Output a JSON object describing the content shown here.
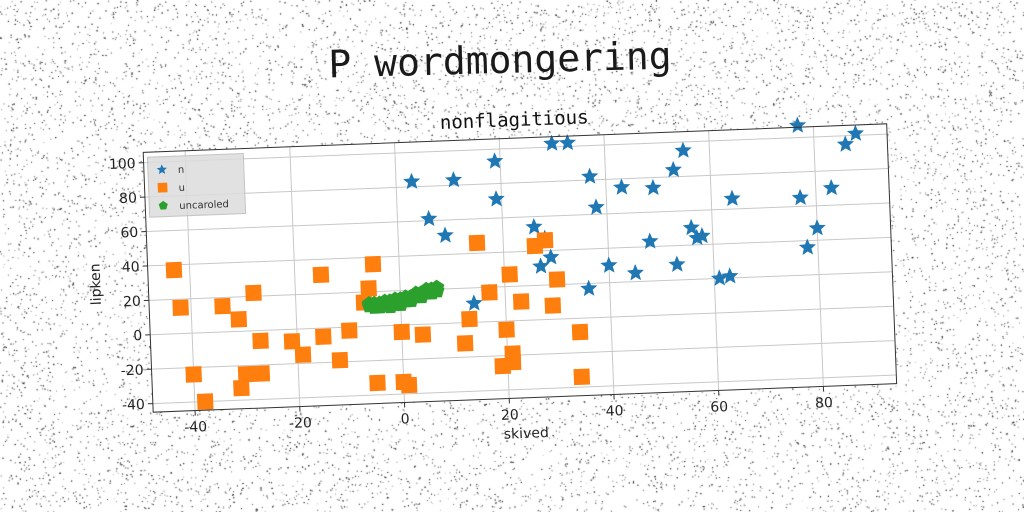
{
  "figure": {
    "super_title": "P wordmongering"
  },
  "chart_data": {
    "type": "scatter",
    "title": "nonflagitious",
    "xlabel": "skived",
    "ylabel": "lipken",
    "xlim": [
      -48,
      94
    ],
    "ylim": [
      -45,
      106
    ],
    "xticks": [
      -40,
      -20,
      0,
      20,
      40,
      60,
      80
    ],
    "yticks": [
      -40,
      -20,
      0,
      20,
      40,
      60,
      80,
      100
    ],
    "grid": true,
    "legend_position": "top-left",
    "series": [
      {
        "name": "n",
        "marker": "star",
        "color": "#1f77b4",
        "points": [
          [
            3,
            83
          ],
          [
            11,
            83
          ],
          [
            19,
            93
          ],
          [
            30,
            102
          ],
          [
            33,
            102
          ],
          [
            53,
            84
          ],
          [
            55,
            95
          ],
          [
            77,
            107
          ],
          [
            86,
            95
          ],
          [
            88,
            101
          ],
          [
            6,
            61
          ],
          [
            9,
            51
          ],
          [
            19,
            71
          ],
          [
            26,
            54
          ],
          [
            28,
            47
          ],
          [
            27,
            31
          ],
          [
            36,
            17
          ],
          [
            38,
            64
          ],
          [
            37,
            82
          ],
          [
            43,
            75
          ],
          [
            49,
            74
          ],
          [
            48,
            43
          ],
          [
            56,
            50
          ],
          [
            57,
            44
          ],
          [
            58,
            45
          ],
          [
            53,
            29
          ],
          [
            45,
            25
          ],
          [
            40,
            30
          ],
          [
            61,
            20
          ],
          [
            63,
            21
          ],
          [
            64,
            66
          ],
          [
            77,
            65
          ],
          [
            78,
            36
          ],
          [
            80,
            47
          ],
          [
            83,
            70
          ],
          [
            14,
            11
          ],
          [
            17,
            17
          ],
          [
            29,
            36
          ]
        ]
      },
      {
        "name": "u",
        "marker": "square",
        "color": "#ff7f0e",
        "points": [
          [
            -43,
            37
          ],
          [
            -42,
            15
          ],
          [
            -40,
            -24
          ],
          [
            -38,
            -40
          ],
          [
            -34,
            15
          ],
          [
            -31,
            -33
          ],
          [
            -30,
            -25
          ],
          [
            -31,
            7
          ],
          [
            -28,
            22
          ],
          [
            -27,
            -25
          ],
          [
            -27,
            -6
          ],
          [
            -21,
            -7
          ],
          [
            -19,
            -15
          ],
          [
            -15,
            -5
          ],
          [
            -15,
            31
          ],
          [
            -12,
            -19
          ],
          [
            -10,
            -2
          ],
          [
            -5,
            36
          ],
          [
            -6,
            22
          ],
          [
            -7,
            14
          ],
          [
            -5,
            -33
          ],
          [
            0,
            -4
          ],
          [
            1,
            -35
          ],
          [
            0,
            -33
          ],
          [
            4,
            -6
          ],
          [
            13,
            2
          ],
          [
            12,
            -12
          ],
          [
            15,
            46
          ],
          [
            17,
            17
          ],
          [
            19,
            -26
          ],
          [
            20,
            -5
          ],
          [
            21,
            -19
          ],
          [
            21,
            -24
          ],
          [
            21,
            27
          ],
          [
            23,
            11
          ],
          [
            26,
            43
          ],
          [
            28,
            46
          ],
          [
            29,
            8
          ],
          [
            30,
            23
          ],
          [
            34,
            -8
          ],
          [
            34,
            -34
          ]
        ]
      },
      {
        "name": "uncaroled",
        "marker": "pentagon",
        "color": "#2ca02c",
        "points": [
          [
            -6,
            12
          ],
          [
            -5,
            11
          ],
          [
            -4,
            13
          ],
          [
            -3,
            12
          ],
          [
            -2,
            14
          ],
          [
            -1,
            13
          ],
          [
            0,
            15
          ],
          [
            1,
            14
          ],
          [
            2,
            16
          ],
          [
            3,
            17
          ],
          [
            4,
            18
          ],
          [
            5,
            19
          ],
          [
            6,
            20
          ],
          [
            7,
            21
          ],
          [
            -5,
            13
          ],
          [
            -3,
            14
          ],
          [
            -1,
            15
          ],
          [
            1,
            16
          ],
          [
            3,
            18
          ],
          [
            5,
            20
          ],
          [
            -2,
            11
          ],
          [
            0,
            12
          ],
          [
            2,
            14
          ],
          [
            4,
            16
          ],
          [
            6,
            18
          ],
          [
            7,
            19
          ],
          [
            -4,
            11
          ],
          [
            -6,
            13
          ]
        ]
      }
    ]
  }
}
